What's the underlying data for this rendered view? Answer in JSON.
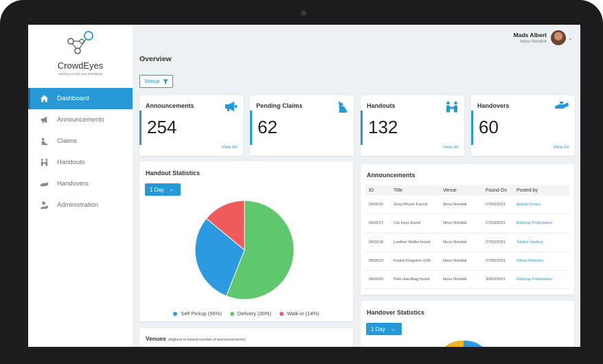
{
  "brand": {
    "name": "CrowdEyes",
    "tagline": "Helping you find your belongings"
  },
  "user": {
    "name": "Mads Albert",
    "company": "Novo Nordisk"
  },
  "nav": [
    {
      "label": "Dashboard",
      "icon": "home-icon",
      "active": true
    },
    {
      "label": "Announcements",
      "icon": "megaphone-icon"
    },
    {
      "label": "Claims",
      "icon": "claim-icon"
    },
    {
      "label": "Handouts",
      "icon": "handout-icon"
    },
    {
      "label": "Handovers",
      "icon": "handover-icon"
    },
    {
      "label": "Administration",
      "icon": "admin-icon"
    }
  ],
  "page": {
    "title": "Overview",
    "venue_filter": "Venue"
  },
  "stats": [
    {
      "label": "Announcements",
      "value": "254",
      "link": "View All",
      "icon": "megaphone-icon"
    },
    {
      "label": "Pending Claims",
      "value": "62",
      "link": "",
      "icon": "raised-hand-icon"
    },
    {
      "label": "Handouts",
      "value": "132",
      "link": "View All",
      "icon": "handout-icon"
    },
    {
      "label": "Handovers",
      "value": "60",
      "link": "View All",
      "icon": "handover-icon"
    }
  ],
  "handout_stats": {
    "title": "Handout Statistics",
    "period": "1 Day",
    "legend": [
      "Self Pickup (56%)",
      "Delivery (30%)",
      "Walk-in (14%)"
    ]
  },
  "chart_data": {
    "type": "pie",
    "categories": [
      "Self Pickup",
      "Delivery",
      "Walk-in"
    ],
    "values": [
      56,
      30,
      14
    ],
    "colors": [
      "#5fc86f",
      "#2b9ae0",
      "#ef5a5a"
    ]
  },
  "announcements": {
    "title": "Announcements",
    "columns": [
      "ID",
      "Title",
      "Venue",
      "Found On",
      "Posted by"
    ],
    "rows": [
      [
        "DK0016",
        "Grey Phone Found",
        "Novo Nordisk",
        "27/03/2021",
        "Anthal Cortes"
      ],
      [
        "DK0017",
        "Car keys found",
        "Novo Nordisk",
        "27/03/2021",
        "Ballerup Politistation"
      ],
      [
        "DK0018",
        "Leather Wallet found",
        "Novo Nordisk",
        "27/03/2021",
        "Tabitur Vasilius"
      ],
      [
        "DK0019",
        "Found Kingston USB",
        "Novo Nordisk",
        "27/03/2021",
        "Olivia Petersen"
      ],
      [
        "DK0020",
        "Pink Handbag found",
        "Novo Nordisk",
        "30/03/2021",
        "Ballerup Politistation"
      ]
    ]
  },
  "handover_stats": {
    "title": "Handover Statistics",
    "period": "1 Day"
  },
  "venues": {
    "title": "Venues",
    "subtitle": "(Highest to lowest number of announcements)"
  }
}
